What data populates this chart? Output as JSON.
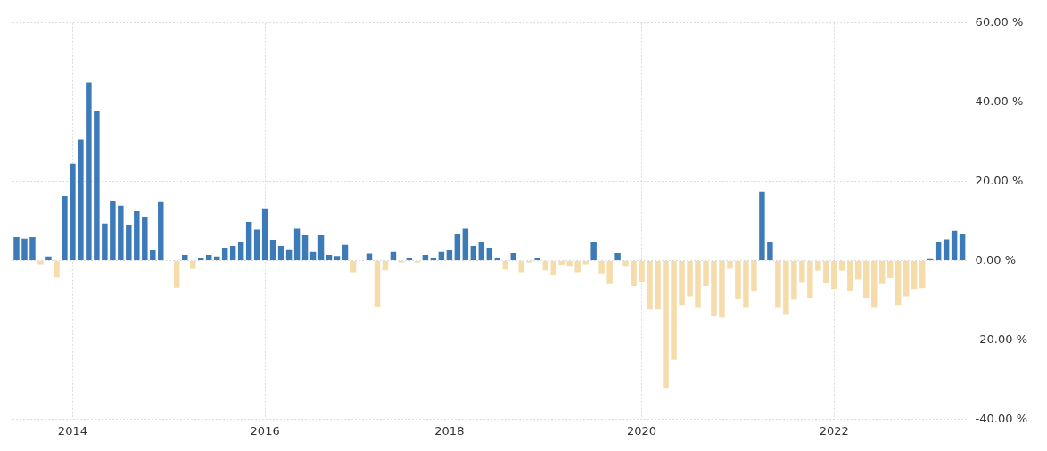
{
  "chart_data": {
    "type": "bar",
    "categories": [
      null,
      null,
      null,
      null,
      null,
      null,
      null,
      "2014",
      null,
      null,
      null,
      null,
      null,
      null,
      null,
      null,
      null,
      null,
      null,
      null,
      null,
      null,
      null,
      null,
      null,
      null,
      null,
      null,
      null,
      null,
      null,
      "2016",
      null,
      null,
      null,
      null,
      null,
      null,
      null,
      null,
      null,
      null,
      null,
      null,
      null,
      null,
      null,
      null,
      null,
      null,
      null,
      null,
      null,
      null,
      "2018",
      null,
      null,
      null,
      null,
      null,
      null,
      null,
      null,
      null,
      null,
      null,
      null,
      null,
      null,
      null,
      null,
      null,
      null,
      null,
      null,
      null,
      null,
      null,
      "2020",
      null,
      null,
      null,
      null,
      null,
      null,
      null,
      null,
      null,
      null,
      null,
      null,
      null,
      null,
      null,
      null,
      null,
      null,
      null,
      null,
      null,
      null,
      null,
      "2022",
      null,
      null,
      null,
      null,
      null,
      null,
      null,
      null,
      null,
      null,
      null,
      null,
      null,
      null,
      null,
      null
    ],
    "values": [
      6.0,
      5.6,
      6.0,
      -0.9,
      1.1,
      -4.2,
      16.3,
      24.5,
      30.6,
      45,
      37.9,
      9.4,
      15.1,
      13.9,
      9.0,
      12.5,
      10.9,
      2.6,
      14.8,
      null,
      -6.8,
      1.5,
      -2.0,
      0.7,
      1.5,
      1.1,
      3.3,
      3.7,
      4.8,
      9.8,
      7.9,
      13.2,
      5.3,
      3.7,
      2.9,
      8.1,
      6.4,
      2.2,
      6.4,
      1.5,
      1.2,
      4.0,
      -2.9,
      null,
      1.8,
      -11.6,
      -2.4,
      2.2,
      -0.5,
      0.8,
      -0.5,
      1.5,
      0.7,
      2.2,
      2.6,
      6.8,
      8.1,
      3.7,
      4.6,
      3.3,
      0.6,
      -2.2,
      1.9,
      -2.9,
      -0.5,
      0.7,
      -2.4,
      -3.5,
      -1.0,
      -1.5,
      -2.9,
      -0.9,
      4.6,
      -3.2,
      -5.9,
      1.9,
      -1.5,
      -6.4,
      -5.3,
      -12.3,
      -12.3,
      -32.1,
      -25,
      -11.2,
      -9,
      -11.9,
      -6.4,
      -14,
      -14.3,
      -2,
      -9.7,
      -11.9,
      -7.5,
      17.5,
      4.6,
      -11.9,
      -13.5,
      -9.9,
      -5.4,
      -9.3,
      -2.5,
      -5.7,
      -7.1,
      -2.5,
      -7.5,
      -4.7,
      -9.3,
      -11.9,
      -5.9,
      -4.4,
      -11.2,
      -9,
      -7.1,
      -6.9,
      0.4,
      4.6,
      5.4,
      7.6,
      6.8
    ],
    "colors": [
      "#3d7ab8",
      "#3d7ab8",
      "#3d7ab8",
      "#f5dcaa",
      "#3d7ab8",
      "#f5dcaa",
      "#3d7ab8",
      "#3d7ab8",
      "#3d7ab8",
      "#3d7ab8",
      "#3d7ab8",
      "#3d7ab8",
      "#3d7ab8",
      "#3d7ab8",
      "#3d7ab8",
      "#3d7ab8",
      "#3d7ab8",
      "#3d7ab8",
      "#3d7ab8",
      "#3d7ab8",
      "#f5dcaa",
      "#3d7ab8",
      "#f5dcaa",
      "#3d7ab8",
      "#3d7ab8",
      "#3d7ab8",
      "#3d7ab8",
      "#3d7ab8",
      "#3d7ab8",
      "#3d7ab8",
      "#3d7ab8",
      "#3d7ab8",
      "#3d7ab8",
      "#3d7ab8",
      "#3d7ab8",
      "#3d7ab8",
      "#3d7ab8",
      "#3d7ab8",
      "#3d7ab8",
      "#3d7ab8",
      "#3d7ab8",
      "#3d7ab8",
      "#f5dcaa",
      "#3d7ab8",
      "#3d7ab8",
      "#f5dcaa",
      "#f5dcaa",
      "#3d7ab8",
      "#f5dcaa",
      "#3d7ab8",
      "#f5dcaa",
      "#3d7ab8",
      "#3d7ab8",
      "#3d7ab8",
      "#3d7ab8",
      "#3d7ab8",
      "#3d7ab8",
      "#3d7ab8",
      "#3d7ab8",
      "#3d7ab8",
      "#3d7ab8",
      "#f5dcaa",
      "#3d7ab8",
      "#f5dcaa",
      "#f5dcaa",
      "#3d7ab8",
      "#f5dcaa",
      "#f5dcaa",
      "#f5dcaa",
      "#f5dcaa",
      "#f5dcaa",
      "#f5dcaa",
      "#3d7ab8",
      "#f5dcaa",
      "#f5dcaa",
      "#3d7ab8",
      "#f5dcaa",
      "#f5dcaa",
      "#f5dcaa",
      "#f5dcaa",
      "#f5dcaa",
      "#f5dcaa",
      "#f5dcaa",
      "#f5dcaa",
      "#f5dcaa",
      "#f5dcaa",
      "#f5dcaa",
      "#f5dcaa",
      "#f5dcaa",
      "#f5dcaa",
      "#f5dcaa",
      "#f5dcaa",
      "#f5dcaa",
      "#3d7ab8",
      "#3d7ab8",
      "#f5dcaa",
      "#f5dcaa",
      "#f5dcaa",
      "#f5dcaa",
      "#f5dcaa",
      "#f5dcaa",
      "#f5dcaa",
      "#f5dcaa",
      "#f5dcaa",
      "#f5dcaa",
      "#f5dcaa",
      "#f5dcaa",
      "#f5dcaa",
      "#f5dcaa",
      "#f5dcaa",
      "#f5dcaa",
      "#f5dcaa",
      "#f5dcaa",
      "#f5dcaa",
      "#3d7ab8",
      "#3d7ab8",
      "#3d7ab8",
      "#3d7ab8",
      "#3d7ab8"
    ],
    "ylim": [
      -40,
      60
    ],
    "yticks": [
      {
        "value": -40,
        "label": "-40.00 %"
      },
      {
        "value": -20,
        "label": "-20.00 %"
      },
      {
        "value": 0,
        "label": "0.00 %"
      },
      {
        "value": 20,
        "label": "20.00 %"
      },
      {
        "value": 40,
        "label": "40.00 %"
      },
      {
        "value": 60,
        "label": "60.00 %"
      }
    ],
    "grid": true
  }
}
